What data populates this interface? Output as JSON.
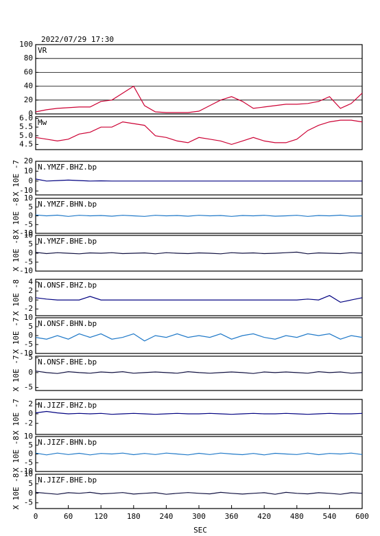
{
  "page_title": "2022/07/29 17:30",
  "chart_data": [
    {
      "type": "line",
      "title": "VR",
      "color": "#cc0033",
      "grid": true,
      "xlim": [
        0,
        600
      ],
      "ylim": [
        0,
        100
      ],
      "yticks": [
        0,
        20,
        40,
        60,
        80,
        100
      ],
      "x": [
        0,
        20,
        40,
        60,
        80,
        100,
        120,
        140,
        160,
        180,
        200,
        220,
        240,
        260,
        280,
        300,
        320,
        340,
        360,
        380,
        400,
        420,
        440,
        460,
        480,
        500,
        520,
        540,
        560,
        580,
        600
      ],
      "values": [
        3,
        6,
        8,
        9,
        10,
        10,
        18,
        20,
        30,
        40,
        12,
        3,
        2,
        2,
        2,
        4,
        12,
        20,
        25,
        18,
        8,
        10,
        12,
        14,
        14,
        15,
        18,
        25,
        8,
        15,
        30
      ]
    },
    {
      "type": "line",
      "title": "Mw",
      "color": "#cc0033",
      "grid": false,
      "xlim": [
        0,
        600
      ],
      "ylim": [
        4.2,
        6.1
      ],
      "yticks": [
        {
          "value": 4.5,
          "label": "4.5"
        },
        {
          "value": 5,
          "label": "5.0"
        },
        {
          "value": 5.5,
          "label": "5.5"
        },
        {
          "value": 6,
          "label": "6.0"
        }
      ],
      "x": [
        0,
        20,
        40,
        60,
        80,
        100,
        120,
        140,
        160,
        180,
        200,
        220,
        240,
        260,
        280,
        300,
        320,
        340,
        360,
        380,
        400,
        420,
        440,
        460,
        480,
        500,
        520,
        540,
        560,
        580,
        600
      ],
      "values": [
        4.9,
        4.8,
        4.7,
        4.8,
        5.1,
        5.2,
        5.5,
        5.5,
        5.8,
        5.7,
        5.6,
        5.0,
        4.9,
        4.7,
        4.6,
        4.9,
        4.8,
        4.7,
        4.5,
        4.7,
        4.9,
        4.7,
        4.6,
        4.6,
        4.8,
        5.3,
        5.6,
        5.8,
        5.9,
        5.9,
        5.8
      ]
    },
    {
      "type": "line",
      "title": "N.YMZF.BHZ.bp",
      "ylabel": "X 10E -7",
      "color": "#000080",
      "grid": false,
      "xlim": [
        0,
        600
      ],
      "ylim": [
        -14,
        20
      ],
      "yticks": [
        -10,
        0,
        10,
        20
      ],
      "x": [
        0,
        20,
        40,
        60,
        80,
        100,
        120,
        140,
        160,
        180,
        200,
        220,
        240,
        260,
        280,
        300,
        320,
        340,
        360,
        380,
        400,
        420,
        440,
        460,
        480,
        500,
        520,
        540,
        560,
        580,
        600
      ],
      "values": [
        2,
        0,
        0.5,
        1,
        0.5,
        0,
        0.2,
        0,
        0,
        0,
        0,
        0,
        0,
        0,
        0,
        0,
        0,
        0,
        0,
        0,
        0,
        0,
        0,
        0,
        0,
        0,
        0,
        0,
        0,
        0,
        0
      ]
    },
    {
      "type": "line",
      "title": "N.YMZF.BHN.bp",
      "ylabel": "X 10E -8",
      "color": "#1e78c8",
      "grid": false,
      "xlim": [
        0,
        600
      ],
      "ylim": [
        -10,
        10
      ],
      "yticks": [
        -10,
        -5,
        0,
        5,
        10
      ],
      "x": [
        0,
        20,
        40,
        60,
        80,
        100,
        120,
        140,
        160,
        180,
        200,
        220,
        240,
        260,
        280,
        300,
        320,
        340,
        360,
        380,
        400,
        420,
        440,
        460,
        480,
        500,
        520,
        540,
        560,
        580,
        600
      ],
      "values": [
        0.5,
        0,
        0.4,
        -0.3,
        0.3,
        0,
        0.2,
        -0.2,
        0.3,
        0,
        -0.3,
        0.3,
        0,
        0.2,
        -0.2,
        0.3,
        0,
        0.2,
        -0.3,
        0.2,
        0,
        0.3,
        -0.2,
        0,
        0.3,
        -0.3,
        0.2,
        0,
        0.4,
        -0.2,
        0
      ]
    },
    {
      "type": "line",
      "title": "N.YMZF.BHE.bp",
      "ylabel": "X 10E -8",
      "color": "#101040",
      "grid": false,
      "xlim": [
        0,
        600
      ],
      "ylim": [
        -10,
        10
      ],
      "yticks": [
        -10,
        -5,
        0,
        5,
        10
      ],
      "x": [
        0,
        20,
        40,
        60,
        80,
        100,
        120,
        140,
        160,
        180,
        200,
        220,
        240,
        260,
        280,
        300,
        320,
        340,
        360,
        380,
        400,
        420,
        440,
        460,
        480,
        500,
        520,
        540,
        560,
        580,
        600
      ],
      "values": [
        0.5,
        -0.2,
        0.3,
        0,
        -0.3,
        0.2,
        0,
        0.3,
        -0.2,
        0,
        0.2,
        -0.3,
        0.3,
        0,
        -0.2,
        0.2,
        0,
        -0.3,
        0.3,
        0,
        0.2,
        -0.2,
        0,
        0.3,
        0.6,
        -0.3,
        0.2,
        0,
        -0.2,
        0.3,
        0
      ]
    },
    {
      "type": "line",
      "title": "N.ONSF.BHZ.bp",
      "ylabel": "X 10E -8",
      "color": "#000080",
      "grid": false,
      "xlim": [
        0,
        600
      ],
      "ylim": [
        -3.5,
        4.6
      ],
      "yticks": [
        -2,
        0,
        2,
        4
      ],
      "x": [
        0,
        20,
        40,
        60,
        80,
        100,
        120,
        140,
        160,
        180,
        200,
        220,
        240,
        260,
        280,
        300,
        320,
        340,
        360,
        380,
        400,
        420,
        440,
        460,
        480,
        500,
        520,
        540,
        560,
        580,
        600
      ],
      "values": [
        0.5,
        0.2,
        0,
        0,
        0,
        0.8,
        0,
        0,
        0,
        0,
        0,
        0,
        0,
        0,
        0,
        0,
        0,
        0,
        0,
        0,
        0,
        0,
        0,
        0,
        0,
        0.2,
        0,
        1,
        -0.5,
        0,
        0.5
      ]
    },
    {
      "type": "line",
      "title": "N.ONSF.BHN.bp",
      "ylabel": "X 10E -7",
      "color": "#1e78c8",
      "grid": false,
      "xlim": [
        0,
        600
      ],
      "ylim": [
        -10,
        10
      ],
      "yticks": [
        -10,
        -5,
        0,
        5,
        10
      ],
      "x": [
        0,
        20,
        40,
        60,
        80,
        100,
        120,
        140,
        160,
        180,
        200,
        220,
        240,
        260,
        280,
        300,
        320,
        340,
        360,
        380,
        400,
        420,
        440,
        460,
        480,
        500,
        520,
        540,
        560,
        580,
        600
      ],
      "values": [
        -1,
        -2,
        0,
        -2,
        1,
        -1,
        1,
        -2,
        -1,
        1,
        -3,
        0,
        -1,
        1,
        -1,
        0,
        -1,
        1,
        -2,
        0,
        1,
        -1,
        -2,
        0,
        -1,
        1,
        0,
        1,
        -2,
        0,
        -1
      ]
    },
    {
      "type": "line",
      "title": "N.ONSF.BHE.bp",
      "ylabel": "X 10E -7",
      "color": "#101040",
      "grid": false,
      "xlim": [
        0,
        600
      ],
      "ylim": [
        -6,
        5.5
      ],
      "yticks": [
        -5,
        0,
        5
      ],
      "x": [
        0,
        20,
        40,
        60,
        80,
        100,
        120,
        140,
        160,
        180,
        200,
        220,
        240,
        260,
        280,
        300,
        320,
        340,
        360,
        380,
        400,
        420,
        440,
        460,
        480,
        500,
        520,
        540,
        560,
        580,
        600
      ],
      "values": [
        0.5,
        0,
        -0.3,
        0.3,
        0,
        -0.2,
        0.2,
        0,
        0.3,
        -0.2,
        0,
        0.2,
        0,
        -0.2,
        0.3,
        0,
        -0.2,
        0,
        0.2,
        0,
        -0.3,
        0.2,
        0,
        0.2,
        0,
        -0.2,
        0.3,
        0,
        0.2,
        -0.2,
        0
      ]
    },
    {
      "type": "line",
      "title": "N.JIZF.BHZ.bp",
      "ylabel": "X 10E -7",
      "color": "#000080",
      "grid": false,
      "xlim": [
        0,
        600
      ],
      "ylim": [
        -4.3,
        3
      ],
      "yticks": [
        -2,
        0,
        2
      ],
      "x": [
        0,
        20,
        40,
        60,
        80,
        100,
        120,
        140,
        160,
        180,
        200,
        220,
        240,
        260,
        280,
        300,
        320,
        340,
        360,
        380,
        400,
        420,
        440,
        460,
        480,
        500,
        520,
        540,
        560,
        580,
        600
      ],
      "values": [
        0.2,
        0.5,
        0.2,
        0,
        0.1,
        0,
        0.1,
        -0.1,
        0,
        0.1,
        0,
        -0.1,
        0,
        0.1,
        0,
        0,
        0.1,
        0,
        -0.1,
        0,
        0.1,
        0,
        0,
        0.1,
        0,
        -0.1,
        0,
        0.1,
        0,
        0,
        0.1
      ]
    },
    {
      "type": "line",
      "title": "N.JIZF.BHN.bp",
      "ylabel": "X 10E -8",
      "color": "#1e78c8",
      "grid": false,
      "xlim": [
        0,
        600
      ],
      "ylim": [
        -10,
        10
      ],
      "yticks": [
        -10,
        -5,
        0,
        5,
        10
      ],
      "x": [
        0,
        20,
        40,
        60,
        80,
        100,
        120,
        140,
        160,
        180,
        200,
        220,
        240,
        260,
        280,
        300,
        320,
        340,
        360,
        380,
        400,
        420,
        440,
        460,
        480,
        500,
        520,
        540,
        560,
        580,
        600
      ],
      "values": [
        0.5,
        -0.5,
        0.5,
        -0.3,
        0.4,
        -0.5,
        0.3,
        0,
        0.5,
        -0.4,
        0.3,
        -0.3,
        0.5,
        0,
        -0.5,
        0.4,
        -0.3,
        0.5,
        0,
        -0.4,
        0.3,
        -0.5,
        0.4,
        0,
        -0.3,
        0.5,
        -0.4,
        0.3,
        0,
        0.5,
        -0.3
      ]
    },
    {
      "type": "line",
      "title": "N.JIZF.BHE.bp",
      "ylabel": "X 10E -8",
      "color": "#101040",
      "grid": false,
      "xlim": [
        0,
        600
      ],
      "ylim": [
        -8,
        10
      ],
      "yticks": [
        -5,
        0,
        5,
        10
      ],
      "xlabel": "SEC",
      "xticks": [
        0,
        60,
        120,
        180,
        240,
        300,
        360,
        420,
        480,
        540,
        600
      ],
      "x": [
        0,
        20,
        40,
        60,
        80,
        100,
        120,
        140,
        160,
        180,
        200,
        220,
        240,
        260,
        280,
        300,
        320,
        340,
        360,
        380,
        400,
        420,
        440,
        460,
        480,
        500,
        520,
        540,
        560,
        580,
        600
      ],
      "values": [
        0.5,
        0,
        -0.5,
        0.3,
        0,
        0.5,
        -0.3,
        0,
        0.4,
        -0.4,
        0,
        0.3,
        -0.5,
        0,
        0.4,
        0,
        -0.3,
        0.5,
        0,
        -0.4,
        0,
        0.3,
        -0.5,
        0.5,
        0,
        -0.3,
        0.3,
        0,
        -0.5,
        0.3,
        0
      ]
    }
  ]
}
